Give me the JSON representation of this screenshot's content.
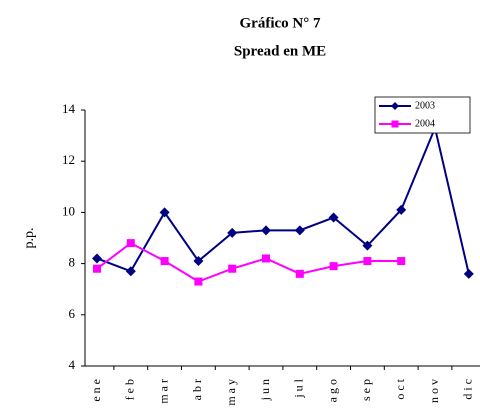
{
  "chart_data": {
    "type": "line",
    "title": "Gráfico N° 7",
    "subtitle": "Spread en ME",
    "y_label": "p.p.",
    "categories": [
      "ene",
      "feb",
      "mar",
      "abr",
      "may",
      "jun",
      "jul",
      "ago",
      "sep",
      "oct",
      "nov",
      "dic"
    ],
    "series": [
      {
        "name": "2003",
        "color": "#000080",
        "marker": "diamond",
        "values": [
          8.2,
          7.7,
          10.0,
          8.1,
          9.2,
          9.3,
          9.3,
          9.8,
          8.7,
          10.1,
          13.3,
          7.6
        ]
      },
      {
        "name": "2004",
        "color": "#ff00ff",
        "marker": "square",
        "values": [
          7.8,
          8.8,
          8.1,
          7.3,
          7.8,
          8.2,
          7.6,
          7.9,
          8.1,
          8.1,
          null,
          null
        ]
      }
    ],
    "ylim": [
      4,
      14
    ],
    "yticks": [
      4,
      6,
      8,
      10,
      12,
      14
    ],
    "legend": "top-right"
  }
}
